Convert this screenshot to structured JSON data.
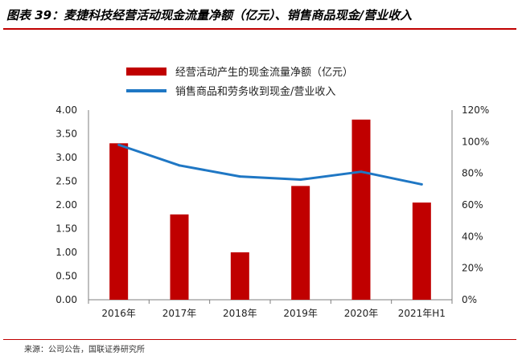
{
  "figure": {
    "title": "图表 39：麦捷科技经营活动现金流量净额（亿元）、销售商品现金/营业收入",
    "source": "来源：公司公告，国联证券研究所"
  },
  "chart_data": {
    "type": "bar",
    "categories": [
      "2016年",
      "2017年",
      "2018年",
      "2019年",
      "2020年",
      "2021年H1"
    ],
    "series": [
      {
        "name": "经营活动产生的现金流量净额（亿元）",
        "type": "bar",
        "axis": "left",
        "color": "#c00000",
        "values": [
          3.3,
          1.8,
          1.0,
          2.4,
          3.8,
          2.05
        ]
      },
      {
        "name": "销售商品和劳务收到现金/营业收入",
        "type": "line",
        "axis": "right",
        "color": "#1f77c4",
        "values": [
          98,
          85,
          78,
          76,
          81,
          73
        ]
      }
    ],
    "y_left": {
      "range": [
        0,
        4
      ],
      "ticks": [
        0,
        0.5,
        1,
        1.5,
        2,
        2.5,
        3,
        3.5,
        4
      ],
      "tick_labels": [
        "0.00",
        "0.50",
        "1.00",
        "1.50",
        "2.00",
        "2.50",
        "3.00",
        "3.50",
        "4.00"
      ]
    },
    "y_right": {
      "range": [
        0,
        120
      ],
      "ticks": [
        0,
        20,
        40,
        60,
        80,
        100,
        120
      ],
      "tick_labels": [
        "0%",
        "20%",
        "40%",
        "60%",
        "80%",
        "100%",
        "120%"
      ]
    },
    "grid": false,
    "legend_position": "top-center"
  }
}
